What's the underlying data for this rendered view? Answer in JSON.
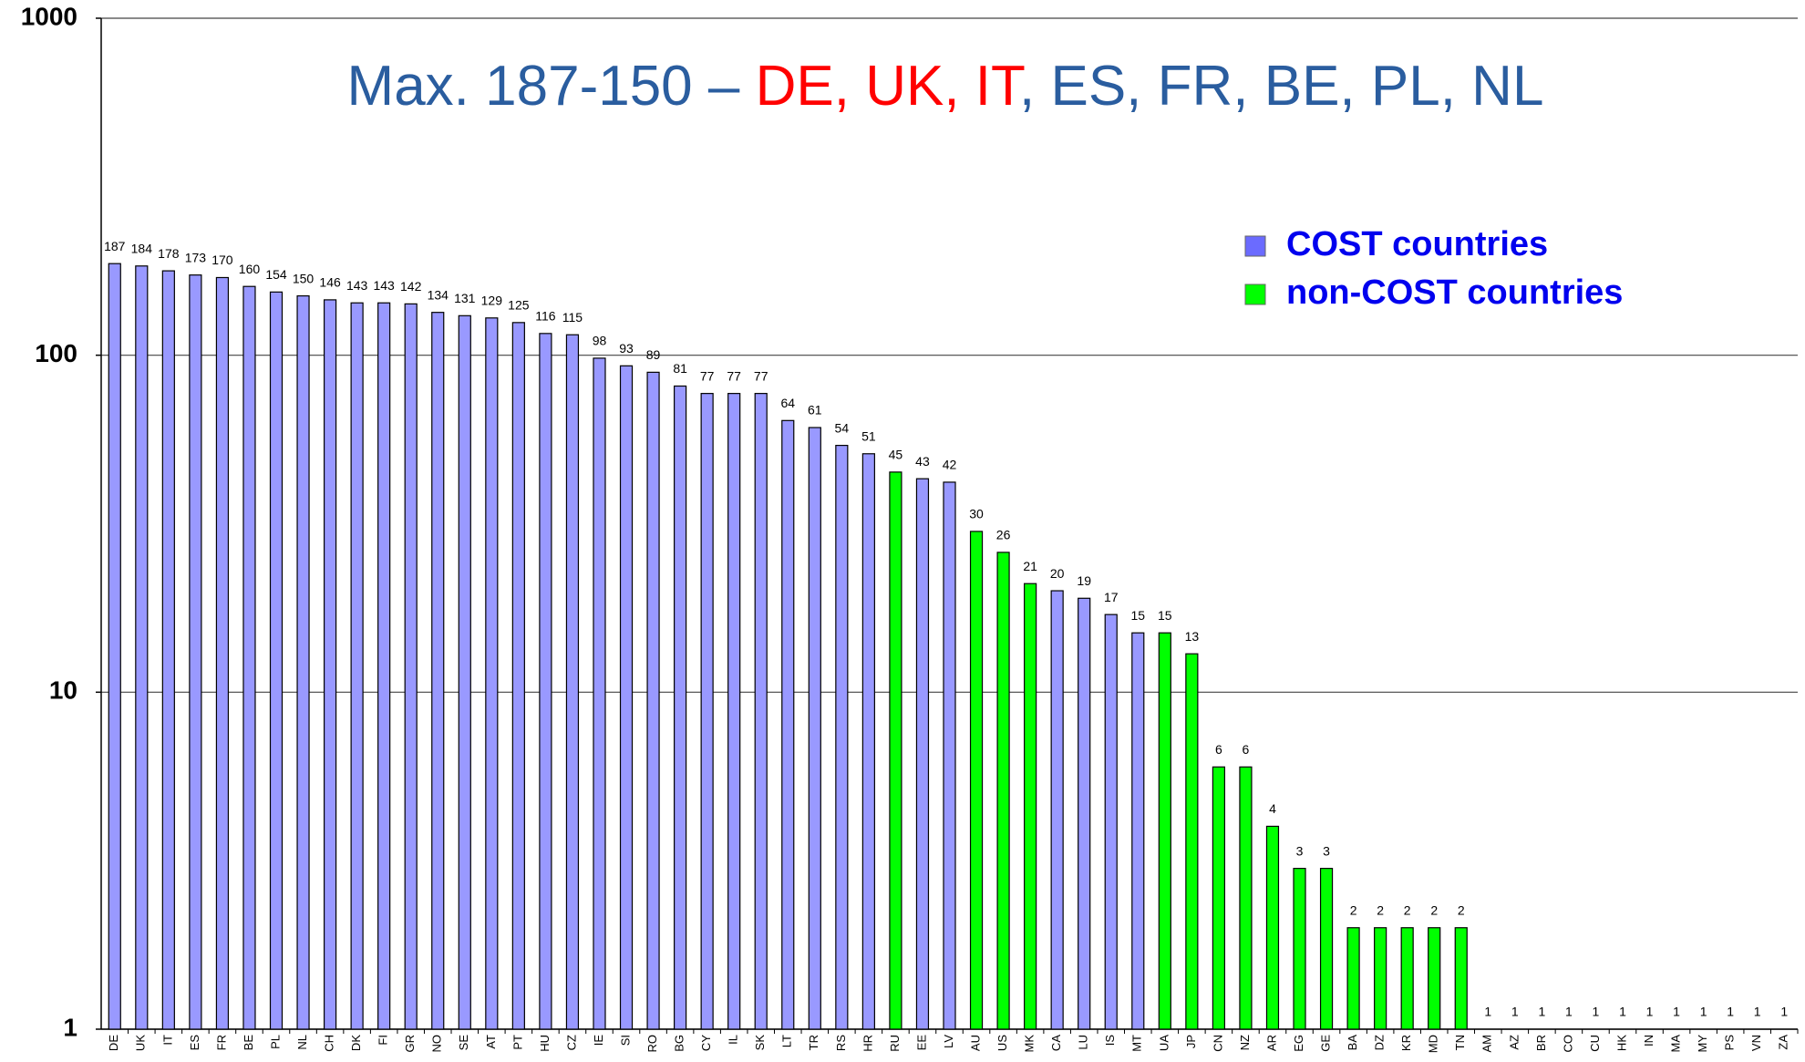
{
  "chart_data": {
    "type": "bar",
    "title_parts": [
      {
        "text": "Max. 187-150 – ",
        "color": "#2a5d9f"
      },
      {
        "text": "DE",
        "color": "#ff0000"
      },
      {
        "text": ", ",
        "color": "#ff0000"
      },
      {
        "text": "UK",
        "color": "#ff0000"
      },
      {
        "text": ", ",
        "color": "#ff0000"
      },
      {
        "text": "IT",
        "color": "#ff0000"
      },
      {
        "text": ", ES, FR, BE, PL, NL",
        "color": "#2a5d9f"
      }
    ],
    "categories": [
      "DE",
      "UK",
      "IT",
      "ES",
      "FR",
      "BE",
      "PL",
      "NL",
      "CH",
      "DK",
      "FI",
      "GR",
      "NO",
      "SE",
      "AT",
      "PT",
      "HU",
      "CZ",
      "IE",
      "SI",
      "RO",
      "BG",
      "CY",
      "IL",
      "SK",
      "LT",
      "TR",
      "RS",
      "HR",
      "RU",
      "EE",
      "LV",
      "AU",
      "US",
      "MK",
      "CA",
      "LU",
      "IS",
      "MT",
      "UA",
      "JP",
      "CN",
      "NZ",
      "AR",
      "EG",
      "GE",
      "BA",
      "DZ",
      "KR",
      "MD",
      "TN",
      "AM",
      "AZ",
      "BR",
      "CO",
      "CU",
      "HK",
      "IN",
      "MA",
      "MY",
      "PS",
      "VN",
      "ZA"
    ],
    "values": [
      187,
      184,
      178,
      173,
      170,
      160,
      154,
      150,
      146,
      143,
      143,
      142,
      134,
      131,
      129,
      125,
      116,
      115,
      98,
      93,
      89,
      81,
      77,
      77,
      77,
      64,
      61,
      54,
      51,
      45,
      43,
      42,
      30,
      26,
      21,
      20,
      19,
      17,
      15,
      15,
      13,
      6,
      6,
      4,
      3,
      3,
      2,
      2,
      2,
      2,
      2,
      1,
      1,
      1,
      1,
      1,
      1,
      1,
      1,
      1,
      1,
      1,
      1
    ],
    "colors": [
      "#9999ff",
      "#9999ff",
      "#9999ff",
      "#9999ff",
      "#9999ff",
      "#9999ff",
      "#9999ff",
      "#9999ff",
      "#9999ff",
      "#9999ff",
      "#9999ff",
      "#9999ff",
      "#9999ff",
      "#9999ff",
      "#9999ff",
      "#9999ff",
      "#9999ff",
      "#9999ff",
      "#9999ff",
      "#9999ff",
      "#9999ff",
      "#9999ff",
      "#9999ff",
      "#9999ff",
      "#9999ff",
      "#9999ff",
      "#9999ff",
      "#9999ff",
      "#9999ff",
      "#00ff00",
      "#9999ff",
      "#9999ff",
      "#00ff00",
      "#00ff00",
      "#00ff00",
      "#9999ff",
      "#9999ff",
      "#9999ff",
      "#9999ff",
      "#00ff00",
      "#00ff00",
      "#00ff00",
      "#00ff00",
      "#00ff00",
      "#00ff00",
      "#00ff00",
      "#00ff00",
      "#00ff00",
      "#00ff00",
      "#00ff00",
      "#00ff00",
      "#00ff00",
      "#00ff00",
      "#00ff00",
      "#00ff00",
      "#00ff00",
      "#00ff00",
      "#00ff00",
      "#00ff00",
      "#00ff00",
      "#00ff00",
      "#00ff00",
      "#00ff00"
    ],
    "legend": [
      {
        "name": "COST countries",
        "color": "#6b6bff"
      },
      {
        "name": "non-COST countries",
        "color": "#00ff00"
      }
    ],
    "legend_text_color": "#0000ee",
    "ylim": [
      1,
      1000
    ],
    "yticks": [
      1,
      10,
      100,
      1000
    ],
    "log_scale": true,
    "grid": true
  }
}
